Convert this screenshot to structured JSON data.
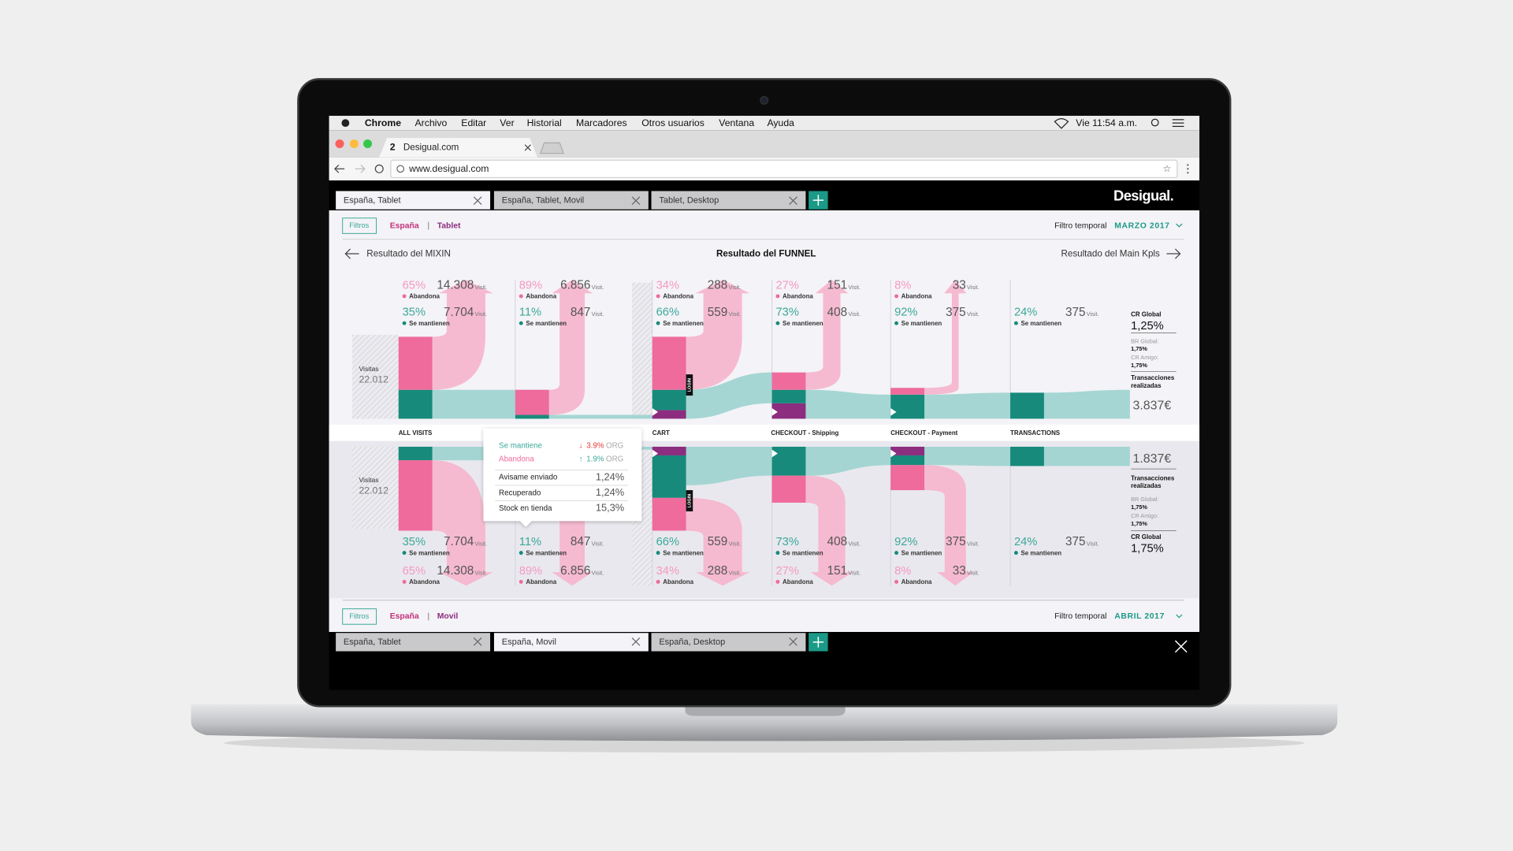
{
  "menubar": {
    "app": "Chrome",
    "items": [
      "Archivo",
      "Editar",
      "Ver",
      "Historial",
      "Marcadores",
      "Otros usuarios",
      "Ventana",
      "Ayuda"
    ],
    "clock": "Vie 11:54 a.m."
  },
  "browser": {
    "tab": "Desigual.com",
    "url": "www.desigual.com"
  },
  "app": {
    "logo": "Desigual.",
    "top_tabs": [
      "España, Tablet",
      "España, Tablet, Movil",
      "Tablet, Desktop"
    ],
    "top_filter": {
      "button": "Filtros",
      "country": "España",
      "device": "Tablet",
      "time_label": "Filtro temporal",
      "period": "MARZO 2017"
    },
    "nav": {
      "left": "Resultado del MIXIN",
      "center": "Resultado del FUNNEL",
      "right": "Resultado del Main Kpls"
    },
    "funnel": {
      "visits_label": "Visitas",
      "unit": "Visit.",
      "abandon_label": "Abandona",
      "keep_label": "Se mantienen",
      "login": "LOGIN",
      "stages": [
        "ALL VISITS",
        "CART",
        "CHECKOUT - Shipping",
        "CHECKOUT - Payment",
        "TRANSACTIONS"
      ],
      "top": {
        "visits": "22.012",
        "columns": [
          {
            "abandon_pct": "65%",
            "abandon_visits": "14.308",
            "keep_pct": "35%",
            "keep_visits": "7.704"
          },
          {
            "abandon_pct": "89%",
            "abandon_visits": "6.856",
            "keep_pct": "11%",
            "keep_visits": "847"
          },
          {
            "abandon_pct": "34%",
            "abandon_visits": "288",
            "keep_pct": "66%",
            "keep_visits": "559"
          },
          {
            "abandon_pct": "27%",
            "abandon_visits": "151",
            "keep_pct": "73%",
            "keep_visits": "408"
          },
          {
            "abandon_pct": "8%",
            "abandon_visits": "33",
            "keep_pct": "92%",
            "keep_visits": "375"
          },
          {
            "keep_pct": "24%",
            "keep_visits": "375"
          }
        ],
        "summary": {
          "cr_global": {
            "label": "CR Global",
            "value": "1,25%"
          },
          "br_global": {
            "label": "BR Global:",
            "value": "1,75%"
          },
          "cr_amigo": {
            "label": "CR Amigo:",
            "value": "1,75%"
          },
          "transactions": {
            "label": "Transacciones realizadas",
            "value": "3.837€"
          }
        }
      },
      "bottom": {
        "visits": "22.012",
        "columns": [
          {
            "abandon_pct": "65%",
            "abandon_visits": "14.308",
            "keep_pct": "35%",
            "keep_visits": "7.704"
          },
          {
            "abandon_pct": "89%",
            "abandon_visits": "6.856",
            "keep_pct": "11%",
            "keep_visits": "847"
          },
          {
            "abandon_pct": "34%",
            "abandon_visits": "288",
            "keep_pct": "66%",
            "keep_visits": "559"
          },
          {
            "abandon_pct": "27%",
            "abandon_visits": "151",
            "keep_pct": "73%",
            "keep_visits": "408"
          },
          {
            "abandon_pct": "8%",
            "abandon_visits": "33",
            "keep_pct": "92%",
            "keep_visits": "375"
          },
          {
            "keep_pct": "24%",
            "keep_visits": "375"
          }
        ],
        "summary": {
          "cr_global": {
            "label": "CR Global",
            "value": "1,75%"
          },
          "br_global": {
            "label": "BR Global:",
            "value": "1,75%"
          },
          "cr_amigo": {
            "label": "CR Amigo:",
            "value": "1,75%"
          },
          "transactions": {
            "label": "Transacciones realizadas",
            "value": "1.837€"
          }
        }
      }
    },
    "tooltip": {
      "keep": {
        "label": "Se mantiene",
        "change": "3.9%"
      },
      "abandon": {
        "label": "Abandona",
        "change": "1.9%"
      },
      "unit": "ORG",
      "rows": [
        {
          "label": "Avisame enviado",
          "value": "1,24%"
        },
        {
          "label": "Recuperado",
          "value": "1,24%"
        },
        {
          "label": "Stock en tienda",
          "value": "15,3%"
        }
      ]
    },
    "bottom_filter": {
      "button": "Filtros",
      "country": "España",
      "device": "Movil",
      "time_label": "Filtro temporal",
      "period": "ABRIL 2017"
    },
    "bottom_tabs": [
      "España, Tablet",
      "España, Movil",
      "España, Desktop"
    ]
  }
}
